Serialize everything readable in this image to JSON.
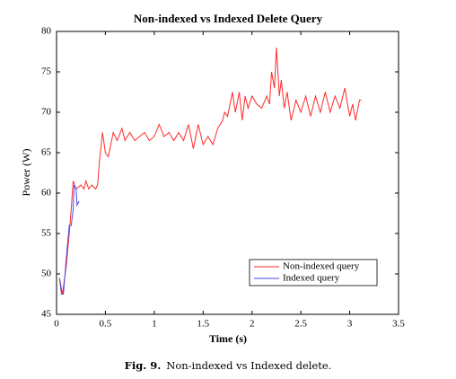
{
  "chart_data": {
    "type": "line",
    "title": "Non-indexed vs Indexed Delete Query",
    "xlabel": "Time (s)",
    "ylabel": "Power (W)",
    "xlim": [
      0,
      3.5
    ],
    "xticks": [
      0,
      0.5,
      1,
      1.5,
      2,
      2.5,
      3,
      3.5
    ],
    "ylim": [
      45,
      80
    ],
    "yticks": [
      45,
      50,
      55,
      60,
      65,
      70,
      75,
      80
    ],
    "legend": "lower right",
    "series": [
      {
        "name": "Non-indexed query",
        "color": "#ff2a2a",
        "x": [
          0.03,
          0.06,
          0.1,
          0.13,
          0.15,
          0.17,
          0.2,
          0.25,
          0.28,
          0.3,
          0.33,
          0.36,
          0.4,
          0.42,
          0.44,
          0.47,
          0.5,
          0.53,
          0.58,
          0.62,
          0.67,
          0.7,
          0.75,
          0.8,
          0.85,
          0.9,
          0.95,
          1.0,
          1.05,
          1.1,
          1.15,
          1.2,
          1.25,
          1.3,
          1.35,
          1.4,
          1.45,
          1.5,
          1.55,
          1.6,
          1.65,
          1.7,
          1.72,
          1.75,
          1.8,
          1.83,
          1.87,
          1.9,
          1.93,
          1.96,
          2.0,
          2.05,
          2.1,
          2.15,
          2.18,
          2.2,
          2.23,
          2.25,
          2.28,
          2.3,
          2.33,
          2.36,
          2.4,
          2.45,
          2.5,
          2.55,
          2.6,
          2.65,
          2.7,
          2.75,
          2.8,
          2.85,
          2.9,
          2.95,
          3.0,
          3.03,
          3.06,
          3.1,
          3.12
        ],
        "values": [
          49.5,
          47.5,
          51,
          55,
          58,
          61.5,
          60.5,
          61,
          60.5,
          61.5,
          60.5,
          61,
          60.5,
          61,
          64,
          67.5,
          65,
          64.5,
          67.5,
          66.5,
          68,
          66.5,
          67.5,
          66.5,
          67,
          67.5,
          66.5,
          67,
          68.5,
          67,
          67.5,
          66.5,
          67.5,
          66.5,
          68.5,
          65.5,
          68.5,
          66,
          67,
          66,
          68,
          69,
          70,
          69.5,
          72.5,
          70,
          72.5,
          69,
          72,
          70.5,
          72,
          71,
          70.5,
          72,
          71,
          75,
          73,
          78,
          72,
          74,
          70.5,
          72.5,
          69,
          71.5,
          70,
          72,
          69.5,
          72,
          70,
          72.5,
          70,
          72,
          70.5,
          73,
          69.5,
          71,
          69,
          71.5,
          71.5
        ]
      },
      {
        "name": "Indexed query",
        "color": "#4a4ae8",
        "x": [
          0.03,
          0.05,
          0.07,
          0.1,
          0.13,
          0.15,
          0.17,
          0.18,
          0.2,
          0.21,
          0.23
        ],
        "values": [
          49.5,
          47.5,
          47.5,
          52,
          56,
          56,
          58,
          61,
          60.5,
          58.5,
          59
        ]
      }
    ]
  },
  "caption": {
    "label": "Fig. 9.",
    "text": "Non-indexed vs Indexed delete."
  }
}
